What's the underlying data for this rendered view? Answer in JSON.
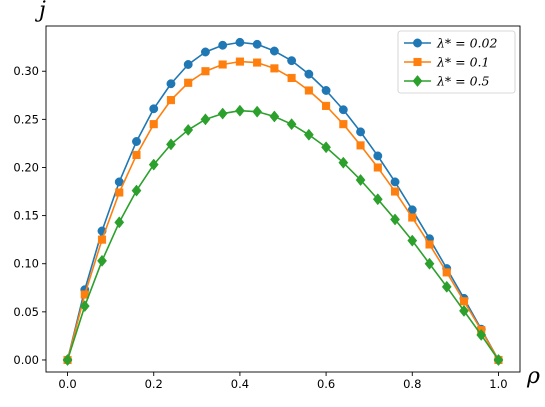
{
  "chart_data": {
    "type": "line",
    "xlabel": "ρ",
    "ylabel": "j",
    "xlim": [
      -0.05,
      1.05
    ],
    "ylim": [
      -0.0125,
      0.347
    ],
    "xticks": [
      0.0,
      0.2,
      0.4,
      0.6,
      0.8,
      1.0
    ],
    "xtick_labels": [
      "0.0",
      "0.2",
      "0.4",
      "0.6",
      "0.8",
      "1.0"
    ],
    "yticks": [
      0.0,
      0.05,
      0.1,
      0.15,
      0.2,
      0.25,
      0.3
    ],
    "ytick_labels": [
      "0.00",
      "0.05",
      "0.10",
      "0.15",
      "0.20",
      "0.25",
      "0.30"
    ],
    "grid": false,
    "legend_position": "top-right",
    "x": [
      0.0,
      0.04,
      0.08,
      0.12,
      0.16,
      0.2,
      0.24,
      0.28,
      0.32,
      0.36,
      0.4,
      0.44,
      0.48,
      0.52,
      0.56,
      0.6,
      0.64,
      0.68,
      0.72,
      0.76,
      0.8,
      0.84,
      0.88,
      0.92,
      0.96,
      1.0
    ],
    "series": [
      {
        "name": "λ* = 0.02",
        "color": "#1f77b4",
        "marker": "circle",
        "values": [
          0.0,
          0.073,
          0.134,
          0.185,
          0.227,
          0.261,
          0.287,
          0.307,
          0.32,
          0.327,
          0.33,
          0.328,
          0.321,
          0.311,
          0.297,
          0.28,
          0.26,
          0.237,
          0.212,
          0.185,
          0.156,
          0.126,
          0.095,
          0.064,
          0.032,
          0.0
        ]
      },
      {
        "name": "λ* = 0.1",
        "color": "#ff7f0e",
        "marker": "square",
        "values": [
          0.0,
          0.068,
          0.125,
          0.174,
          0.213,
          0.245,
          0.27,
          0.288,
          0.3,
          0.307,
          0.31,
          0.309,
          0.303,
          0.293,
          0.28,
          0.264,
          0.245,
          0.223,
          0.2,
          0.175,
          0.148,
          0.12,
          0.091,
          0.061,
          0.031,
          0.0
        ]
      },
      {
        "name": "λ* = 0.5",
        "color": "#2ca02c",
        "marker": "diamond",
        "values": [
          0.0,
          0.056,
          0.103,
          0.143,
          0.176,
          0.203,
          0.224,
          0.239,
          0.25,
          0.256,
          0.259,
          0.258,
          0.253,
          0.245,
          0.234,
          0.221,
          0.205,
          0.187,
          0.167,
          0.146,
          0.124,
          0.1,
          0.076,
          0.051,
          0.026,
          0.0
        ]
      }
    ]
  }
}
